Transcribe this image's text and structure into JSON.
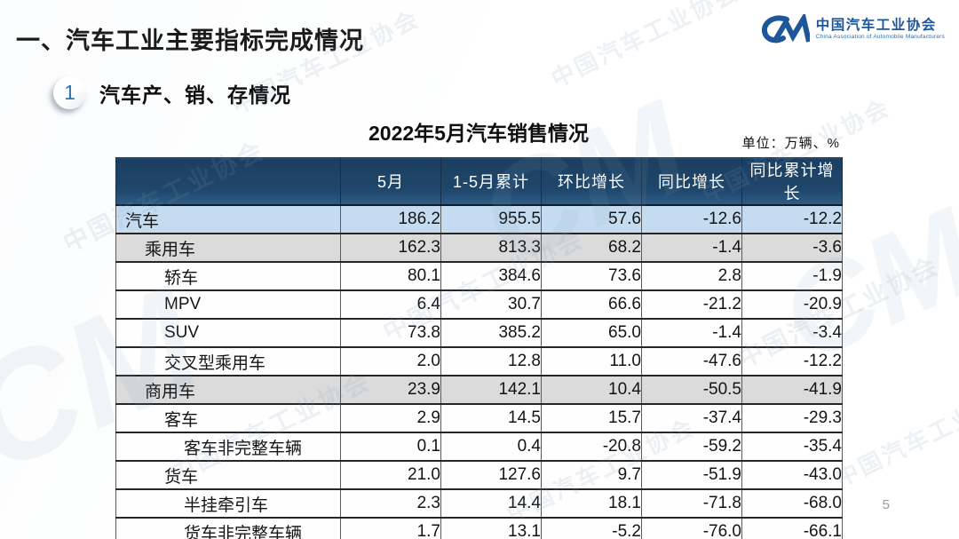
{
  "header": {
    "title": "一、汽车工业主要指标完成情况"
  },
  "logo": {
    "mark": "CM",
    "name_cn": "中国汽车工业协会",
    "name_en": "China Association of Automobile Manufacturers",
    "brand_blue": "#1E5799"
  },
  "section": {
    "number": "1",
    "heading": "汽车产、销、存情况"
  },
  "table": {
    "title": "2022年5月汽车销售情况",
    "unit_note": "单位：万辆、%",
    "columns": [
      "",
      "5月",
      "1-5月累计",
      "环比增长",
      "同比增长",
      "同比累计增长"
    ],
    "rows": [
      {
        "label": "汽车",
        "indent": 0,
        "style": "blue",
        "values": [
          "186.2",
          "955.5",
          "57.6",
          "-12.6",
          "-12.2"
        ]
      },
      {
        "label": "乘用车",
        "indent": 1,
        "style": "gray",
        "values": [
          "162.3",
          "813.3",
          "68.2",
          "-1.4",
          "-3.6"
        ]
      },
      {
        "label": "轿车",
        "indent": 2,
        "style": "white",
        "values": [
          "80.1",
          "384.6",
          "73.6",
          "2.8",
          "-1.9"
        ]
      },
      {
        "label": "MPV",
        "indent": 2,
        "style": "white",
        "values": [
          "6.4",
          "30.7",
          "66.6",
          "-21.2",
          "-20.9"
        ]
      },
      {
        "label": "SUV",
        "indent": 2,
        "style": "white",
        "values": [
          "73.8",
          "385.2",
          "65.0",
          "-1.4",
          "-3.4"
        ]
      },
      {
        "label": "交叉型乘用车",
        "indent": 2,
        "style": "white",
        "values": [
          "2.0",
          "12.8",
          "11.0",
          "-47.6",
          "-12.2"
        ]
      },
      {
        "label": "商用车",
        "indent": 1,
        "style": "gray",
        "values": [
          "23.9",
          "142.1",
          "10.4",
          "-50.5",
          "-41.9"
        ]
      },
      {
        "label": "客车",
        "indent": 2,
        "style": "white",
        "values": [
          "2.9",
          "14.5",
          "15.7",
          "-37.4",
          "-29.3"
        ]
      },
      {
        "label": "客车非完整车辆",
        "indent": 3,
        "style": "white",
        "values": [
          "0.1",
          "0.4",
          "-20.8",
          "-59.2",
          "-35.4"
        ]
      },
      {
        "label": "货车",
        "indent": 2,
        "style": "white",
        "values": [
          "21.0",
          "127.6",
          "9.7",
          "-51.9",
          "-43.0"
        ]
      },
      {
        "label": "半挂牵引车",
        "indent": 3,
        "style": "white",
        "values": [
          "2.3",
          "14.4",
          "18.1",
          "-71.8",
          "-68.0"
        ]
      },
      {
        "label": "货车非完整车辆",
        "indent": 3,
        "style": "white",
        "values": [
          "1.7",
          "13.1",
          "-5.2",
          "-76.0",
          "-66.1"
        ]
      }
    ]
  },
  "watermark": {
    "text": "中国汽车工业协会",
    "mark": "CM"
  },
  "footer": {
    "page_number": "5"
  },
  "colors": {
    "table_header_bg": "#1F476B",
    "row_highlight_blue": "#C5DCF0",
    "row_highlight_gray": "#DBDBDB",
    "accent_blue": "#2E74B5"
  }
}
